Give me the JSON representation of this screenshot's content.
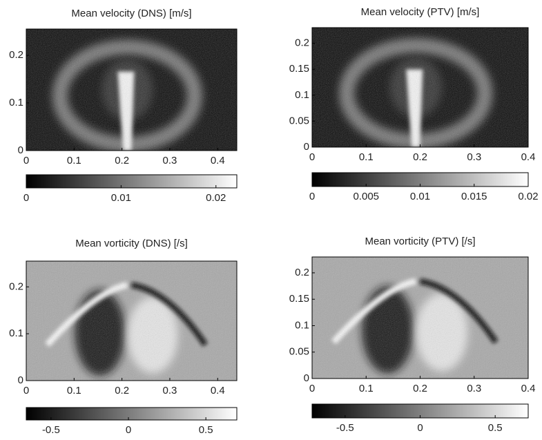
{
  "chart_data": [
    {
      "type": "heatmap",
      "title": "Mean velocity (DNS) [m/s]",
      "xlim": [
        0,
        0.44
      ],
      "xticks": [
        0,
        0.1,
        0.2,
        0.3,
        0.4
      ],
      "ylim": [
        0,
        0.255
      ],
      "yticks": [
        0,
        0.1,
        0.2
      ],
      "colormap": "gray",
      "clim": [
        0,
        0.0222
      ],
      "cticks": [
        0,
        0.01,
        0.02
      ]
    },
    {
      "type": "heatmap",
      "title": "Mean velocity (PTV) [m/s]",
      "xlim": [
        0,
        0.4
      ],
      "xticks": [
        0,
        0.1,
        0.2,
        0.3,
        0.4
      ],
      "ylim": [
        0,
        0.23
      ],
      "yticks": [
        0,
        0.05,
        0.1,
        0.15,
        0.2
      ],
      "colormap": "gray",
      "clim": [
        0,
        0.02
      ],
      "cticks": [
        0,
        0.005,
        0.01,
        0.015,
        0.02
      ]
    },
    {
      "type": "heatmap",
      "title": "Mean vorticity (DNS) [/s]",
      "xlim": [
        0,
        0.44
      ],
      "xticks": [
        0,
        0.1,
        0.2,
        0.3,
        0.4
      ],
      "ylim": [
        0,
        0.255
      ],
      "yticks": [
        0,
        0.1,
        0.2
      ],
      "colormap": "gray",
      "clim": [
        -0.66,
        0.7
      ],
      "cticks": [
        -0.5,
        0,
        0.5
      ]
    },
    {
      "type": "heatmap",
      "title": "Mean vorticity (PTV) [/s]",
      "xlim": [
        0,
        0.4
      ],
      "xticks": [
        0,
        0.1,
        0.2,
        0.3,
        0.4
      ],
      "ylim": [
        0,
        0.23
      ],
      "yticks": [
        0,
        0.05,
        0.1,
        0.15,
        0.2
      ],
      "colormap": "gray",
      "clim": [
        -0.72,
        0.72
      ],
      "cticks": [
        -0.5,
        0,
        0.5
      ]
    }
  ]
}
